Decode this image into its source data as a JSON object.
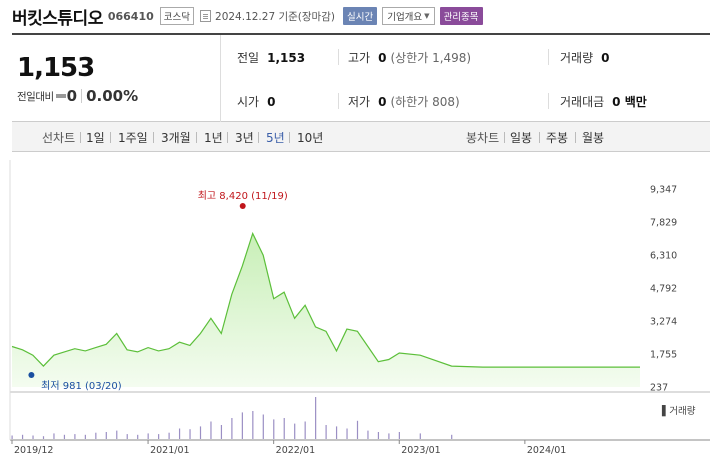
{
  "stock": {
    "name": "버킷스튜디오",
    "code": "066410",
    "market": "코스닥",
    "as_of": "2024.12.27 기준(장마감)",
    "realtime_label": "실시간",
    "corp_info_label": "기업개요",
    "admin_label": "관리종목"
  },
  "summary": {
    "price": "1,153",
    "change_label": "전일대비",
    "change_value": "0",
    "change_pct": "0.00%",
    "prev_close_label": "전일",
    "prev_close": "1,153",
    "high_label": "고가",
    "high": "0",
    "upper_limit": "(상한가 1,498)",
    "volume_label": "거래량",
    "volume": "0",
    "open_label": "시가",
    "open": "0",
    "low_label": "저가",
    "low": "0",
    "lower_limit": "(하한가 808)",
    "amount_label": "거래대금",
    "amount": "0 백만"
  },
  "toolbar": {
    "line_label": "선차트",
    "ranges": [
      "1일",
      "1주일",
      "3개월",
      "1년",
      "3년",
      "5년",
      "10년"
    ],
    "active_range": "5년",
    "candle_label": "봉차트",
    "candles": [
      "일봉",
      "주봉",
      "월봉"
    ]
  },
  "chart_data": {
    "type": "area",
    "x_axis_labels": [
      "2019/12",
      "2021/01",
      "2022/01",
      "2023/01",
      "2024/01"
    ],
    "y_axis_labels": [
      "9,347",
      "7,829",
      "6,310",
      "4,792",
      "3,274",
      "1,755",
      "237"
    ],
    "ylim": [
      237,
      9347
    ],
    "x": [
      "2019/12",
      "2020/01",
      "2020/02",
      "2020/03",
      "2020/04",
      "2020/05",
      "2020/06",
      "2020/07",
      "2020/08",
      "2020/09",
      "2020/10",
      "2020/11",
      "2020/12",
      "2021/01",
      "2021/02",
      "2021/03",
      "2021/04",
      "2021/05",
      "2021/06",
      "2021/07",
      "2021/08",
      "2021/09",
      "2021/10",
      "2021/11",
      "2021/12",
      "2022/01",
      "2022/02",
      "2022/03",
      "2022/04",
      "2022/05",
      "2022/06",
      "2022/07",
      "2022/08",
      "2022/09",
      "2022/10",
      "2022/11",
      "2022/12",
      "2023/01",
      "2023/03",
      "2023/06",
      "2023/09",
      "2023/12",
      "2024/03",
      "2024/06",
      "2024/09",
      "2024/12"
    ],
    "price": [
      2100,
      1950,
      1700,
      1200,
      1700,
      1850,
      2000,
      1900,
      2050,
      2200,
      2700,
      1950,
      1850,
      2050,
      1900,
      2000,
      2300,
      2150,
      2700,
      3400,
      2700,
      4500,
      5800,
      7300,
      6300,
      4300,
      4600,
      3400,
      4000,
      3000,
      2800,
      1900,
      2900,
      2800,
      2100,
      1400,
      1500,
      1800,
      1700,
      1200,
      1153,
      1153,
      1153,
      1153,
      1153,
      1153
    ],
    "volume_series_label": "거래량",
    "volume": [
      5,
      6,
      5,
      4,
      8,
      6,
      7,
      6,
      9,
      10,
      12,
      7,
      6,
      8,
      7,
      9,
      15,
      14,
      18,
      25,
      20,
      30,
      38,
      40,
      35,
      28,
      30,
      22,
      25,
      60,
      20,
      18,
      15,
      26,
      12,
      10,
      8,
      10,
      8,
      6,
      0,
      0,
      0,
      0,
      0,
      0
    ],
    "high_annotation": "최고 8,420 (11/19)",
    "low_annotation": "최저 981 (03/20)",
    "colors": {
      "line": "#5cbf3a",
      "area_top": "#c8efb7",
      "area_bottom": "#f4fcf0",
      "volume": "#9b8fc4",
      "high": "#c0161b",
      "low": "#1a4fa0"
    }
  }
}
